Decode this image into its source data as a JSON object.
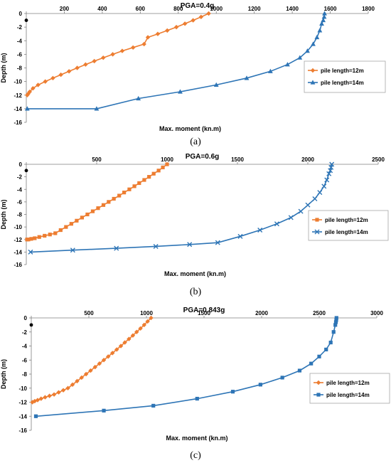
{
  "chart_data": [
    {
      "type": "line",
      "title": "PGA=0.4g",
      "xlabel": "Max. moment (kn.m)",
      "ylabel": "Depth (m)",
      "xlim": [
        0,
        1800
      ],
      "ylim": [
        -16,
        0
      ],
      "xticks": [
        0,
        200,
        400,
        600,
        800,
        1000,
        1200,
        1400,
        1600,
        1800
      ],
      "yticks": [
        0,
        -2,
        -4,
        -6,
        -8,
        -10,
        -12,
        -14,
        -16
      ],
      "legend_position": "right",
      "caption": "(a)",
      "series": [
        {
          "name": "pile length=12m",
          "color": "#ED7D31",
          "marker": "diamond",
          "x": [
            960,
            920,
            878,
            835,
            790,
            742,
            692,
            640,
            620,
            562,
            505,
            455,
            405,
            358,
            312,
            268,
            225,
            182,
            140,
            100,
            62,
            35,
            18,
            10,
            5
          ],
          "y": [
            0,
            -0.5,
            -1,
            -1.5,
            -2,
            -2.5,
            -3,
            -3.5,
            -4.5,
            -5,
            -5.5,
            -6,
            -6.5,
            -7,
            -7.5,
            -8,
            -8.5,
            -9,
            -9.5,
            -10,
            -10.5,
            -11,
            -11.5,
            -11.8,
            -12
          ]
        },
        {
          "name": "pile length=14m",
          "color": "#2E75B6",
          "marker": "triangle",
          "x": [
            1570,
            1568,
            1563,
            1555,
            1545,
            1530,
            1510,
            1480,
            1440,
            1375,
            1285,
            1160,
            1000,
            810,
            590,
            370,
            5
          ],
          "y": [
            0,
            -0.5,
            -1,
            -1.5,
            -2.5,
            -3.5,
            -4.5,
            -5.5,
            -6.5,
            -7.5,
            -8.5,
            -9.5,
            -10.5,
            -11.5,
            -12.5,
            -14,
            -14
          ]
        }
      ]
    },
    {
      "type": "line",
      "title": "PGA=0.6g",
      "xlabel": "Max. moment (kn.m)",
      "ylabel": "Depth (m)",
      "xlim": [
        0,
        2500
      ],
      "ylim": [
        -16,
        0
      ],
      "xticks": [
        0,
        500,
        1000,
        1500,
        2000,
        2500
      ],
      "yticks": [
        0,
        -2,
        -4,
        -6,
        -8,
        -10,
        -12,
        -14,
        -16
      ],
      "legend_position": "right",
      "caption": "(b)",
      "series": [
        {
          "name": "pile length=12m",
          "color": "#ED7D31",
          "marker": "square",
          "x": [
            1000,
            970,
            940,
            905,
            872,
            838,
            802,
            768,
            732,
            695,
            660,
            622,
            585,
            548,
            510,
            472,
            434,
            396,
            358,
            320,
            282,
            244,
            206,
            168,
            130,
            92,
            60,
            35,
            15,
            5
          ],
          "y": [
            0,
            -0.5,
            -1,
            -1.5,
            -2,
            -2.5,
            -3,
            -3.5,
            -4,
            -4.5,
            -5,
            -5.5,
            -6,
            -6.5,
            -7,
            -7.5,
            -8,
            -8.5,
            -9,
            -9.5,
            -10,
            -10.5,
            -11,
            -11.2,
            -11.4,
            -11.6,
            -11.8,
            -11.9,
            -12,
            -12
          ]
        },
        {
          "name": "pile length=14m",
          "color": "#2E75B6",
          "marker": "x",
          "x": [
            2170,
            2165,
            2160,
            2150,
            2135,
            2115,
            2085,
            2050,
            2000,
            1950,
            1880,
            1780,
            1660,
            1520,
            1360,
            1160,
            920,
            640,
            330,
            30
          ],
          "y": [
            0,
            -0.5,
            -1,
            -1.5,
            -2.5,
            -3.5,
            -4.5,
            -5.5,
            -6.5,
            -7.5,
            -8.5,
            -9.5,
            -10.5,
            -11.5,
            -12.5,
            -12.8,
            -13.1,
            -13.4,
            -13.7,
            -14
          ]
        }
      ]
    },
    {
      "type": "line",
      "title": "PGA=0.843g",
      "xlabel": "Max. moment (kn.m)",
      "ylabel": "Depth (m)",
      "xlim": [
        0,
        3000
      ],
      "ylim": [
        -16,
        0
      ],
      "xticks": [
        0,
        500,
        1000,
        1500,
        2000,
        2500,
        3000
      ],
      "yticks": [
        0,
        -2,
        -4,
        -6,
        -8,
        -10,
        -12,
        -14,
        -16
      ],
      "legend_position": "right",
      "caption": "(c)",
      "series": [
        {
          "name": "pile length=12m",
          "color": "#ED7D31",
          "marker": "diamond",
          "x": [
            1040,
            1010,
            980,
            948,
            915,
            882,
            848,
            812,
            778,
            742,
            705,
            668,
            630,
            592,
            554,
            515,
            476,
            437,
            398,
            358,
            318,
            278,
            238,
            198,
            158,
            120,
            85,
            55,
            30,
            10
          ],
          "y": [
            0,
            -0.5,
            -1,
            -1.5,
            -2,
            -2.5,
            -3,
            -3.5,
            -4,
            -4.5,
            -5,
            -5.5,
            -6,
            -6.5,
            -7,
            -7.5,
            -8,
            -8.5,
            -9,
            -9.5,
            -10,
            -10.3,
            -10.6,
            -10.9,
            -11.1,
            -11.3,
            -11.5,
            -11.7,
            -11.85,
            -12
          ]
        },
        {
          "name": "pile length=14m",
          "color": "#2E75B6",
          "marker": "square",
          "x": [
            2650,
            2648,
            2645,
            2640,
            2625,
            2600,
            2560,
            2500,
            2430,
            2330,
            2180,
            1990,
            1750,
            1440,
            1060,
            630,
            40
          ],
          "y": [
            0,
            -0.3,
            -0.6,
            -1,
            -2,
            -3.5,
            -4.5,
            -5.5,
            -6.5,
            -7.5,
            -8.5,
            -9.5,
            -10.5,
            -11.5,
            -12.5,
            -13.2,
            -14
          ]
        }
      ]
    }
  ]
}
